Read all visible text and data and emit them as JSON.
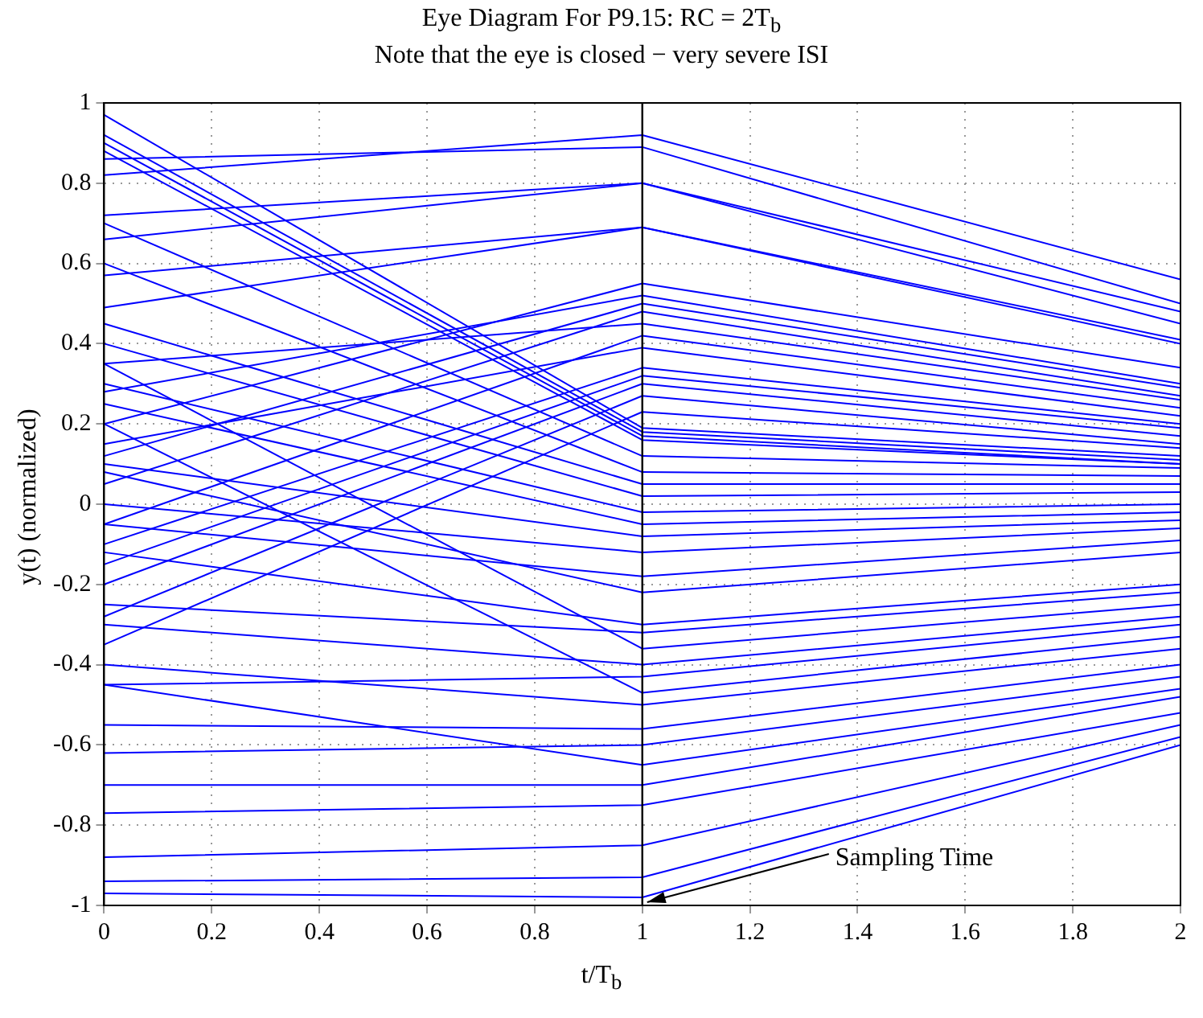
{
  "chart_data": {
    "type": "line",
    "title": "Eye Diagram For P9.15: RC = 2T$_{b}$",
    "subtitle": "Note that the eye is closed − very severe ISI",
    "xlabel": "t/T$_{b}$",
    "ylabel": "y(t) (normalized)",
    "x": [
      0,
      1,
      2
    ],
    "xlim": [
      0,
      2
    ],
    "xticks": [
      0,
      0.2,
      0.4,
      0.6,
      0.8,
      1,
      1.2,
      1.4,
      1.6,
      1.8,
      2
    ],
    "ylim": [
      -1,
      1
    ],
    "yticks": [
      -1,
      -0.8,
      -0.6,
      -0.4,
      -0.2,
      0,
      0.2,
      0.4,
      0.6,
      0.8,
      1
    ],
    "grid": true,
    "legend": false,
    "ref_lines": [
      {
        "axis": "x",
        "value": 1,
        "color": "#000000"
      }
    ],
    "annotations": [
      {
        "text": "Sampling Time",
        "x": 1,
        "y": -1
      }
    ],
    "series": [
      {
        "color": "#0000ff",
        "values": [
          0.82,
          0.92,
          0.56
        ]
      },
      {
        "color": "#0000ff",
        "values": [
          0.86,
          0.89,
          0.5
        ]
      },
      {
        "color": "#0000ff",
        "values": [
          0.72,
          0.8,
          0.48
        ]
      },
      {
        "color": "#0000ff",
        "values": [
          0.66,
          0.8,
          0.45
        ]
      },
      {
        "color": "#0000ff",
        "values": [
          0.49,
          0.69,
          0.41
        ]
      },
      {
        "color": "#0000ff",
        "values": [
          0.57,
          0.69,
          0.4
        ]
      },
      {
        "color": "#0000ff",
        "values": [
          0.2,
          0.55,
          0.34
        ]
      },
      {
        "color": "#0000ff",
        "values": [
          0.28,
          0.52,
          0.3
        ]
      },
      {
        "color": "#0000ff",
        "values": [
          0.12,
          0.5,
          0.29
        ]
      },
      {
        "color": "#0000ff",
        "values": [
          0.05,
          0.48,
          0.27
        ]
      },
      {
        "color": "#0000ff",
        "values": [
          0.35,
          0.45,
          0.26
        ]
      },
      {
        "color": "#0000ff",
        "values": [
          -0.05,
          0.42,
          0.24
        ]
      },
      {
        "color": "#0000ff",
        "values": [
          0.15,
          0.39,
          0.22
        ]
      },
      {
        "color": "#0000ff",
        "values": [
          -0.1,
          0.34,
          0.2
        ]
      },
      {
        "color": "#0000ff",
        "values": [
          -0.15,
          0.32,
          0.19
        ]
      },
      {
        "color": "#0000ff",
        "values": [
          -0.2,
          0.3,
          0.17
        ]
      },
      {
        "color": "#0000ff",
        "values": [
          -0.28,
          0.27,
          0.15
        ]
      },
      {
        "color": "#0000ff",
        "values": [
          -0.35,
          0.23,
          0.14
        ]
      },
      {
        "color": "#0000ff",
        "values": [
          0.97,
          0.19,
          0.12
        ]
      },
      {
        "color": "#0000ff",
        "values": [
          0.92,
          0.18,
          0.11
        ]
      },
      {
        "color": "#0000ff",
        "values": [
          0.9,
          0.17,
          0.1
        ]
      },
      {
        "color": "#0000ff",
        "values": [
          0.88,
          0.16,
          0.1
        ]
      },
      {
        "color": "#0000ff",
        "values": [
          0.7,
          0.12,
          0.09
        ]
      },
      {
        "color": "#0000ff",
        "values": [
          0.6,
          0.08,
          0.07
        ]
      },
      {
        "color": "#0000ff",
        "values": [
          0.45,
          0.05,
          0.05
        ]
      },
      {
        "color": "#0000ff",
        "values": [
          0.4,
          0.02,
          0.03
        ]
      },
      {
        "color": "#0000ff",
        "values": [
          0.3,
          -0.02,
          0
        ]
      },
      {
        "color": "#0000ff",
        "values": [
          0.25,
          -0.05,
          -0.02
        ]
      },
      {
        "color": "#0000ff",
        "values": [
          0.1,
          -0.08,
          -0.04
        ]
      },
      {
        "color": "#0000ff",
        "values": [
          0,
          -0.12,
          -0.06
        ]
      },
      {
        "color": "#0000ff",
        "values": [
          -0.05,
          -0.18,
          -0.09
        ]
      },
      {
        "color": "#0000ff",
        "values": [
          0.08,
          -0.22,
          -0.12
        ]
      },
      {
        "color": "#0000ff",
        "values": [
          -0.12,
          -0.3,
          -0.2
        ]
      },
      {
        "color": "#0000ff",
        "values": [
          -0.25,
          -0.32,
          -0.22
        ]
      },
      {
        "color": "#0000ff",
        "values": [
          0.35,
          -0.36,
          -0.25
        ]
      },
      {
        "color": "#0000ff",
        "values": [
          -0.3,
          -0.4,
          -0.28
        ]
      },
      {
        "color": "#0000ff",
        "values": [
          -0.45,
          -0.43,
          -0.3
        ]
      },
      {
        "color": "#0000ff",
        "values": [
          0.2,
          -0.47,
          -0.33
        ]
      },
      {
        "color": "#0000ff",
        "values": [
          -0.4,
          -0.5,
          -0.36
        ]
      },
      {
        "color": "#0000ff",
        "values": [
          -0.55,
          -0.56,
          -0.4
        ]
      },
      {
        "color": "#0000ff",
        "values": [
          -0.62,
          -0.6,
          -0.43
        ]
      },
      {
        "color": "#0000ff",
        "values": [
          -0.45,
          -0.65,
          -0.46
        ]
      },
      {
        "color": "#0000ff",
        "values": [
          -0.7,
          -0.7,
          -0.48
        ]
      },
      {
        "color": "#0000ff",
        "values": [
          -0.77,
          -0.75,
          -0.52
        ]
      },
      {
        "color": "#0000ff",
        "values": [
          -0.88,
          -0.85,
          -0.55
        ]
      },
      {
        "color": "#0000ff",
        "values": [
          -0.94,
          -0.93,
          -0.58
        ]
      },
      {
        "color": "#0000ff",
        "values": [
          -0.97,
          -0.98,
          -0.6
        ]
      }
    ]
  }
}
